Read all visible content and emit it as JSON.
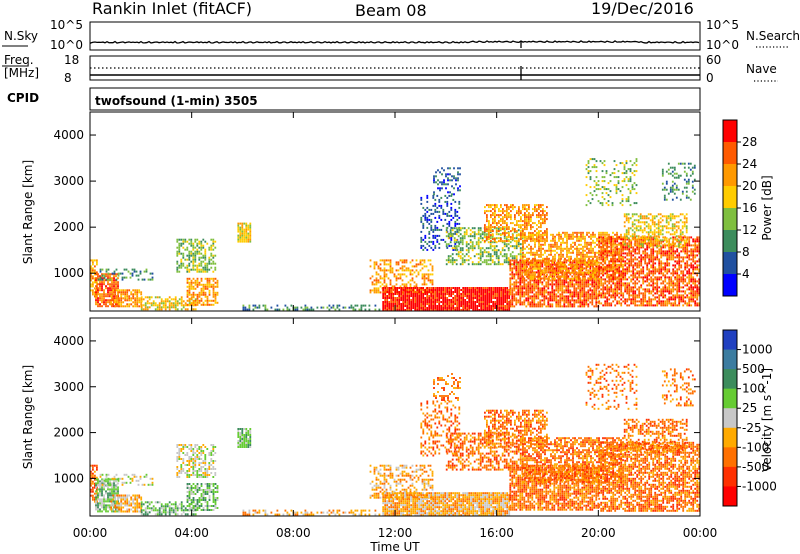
{
  "header": {
    "station": "Rankin Inlet (fitACF)",
    "beam": "Beam 08",
    "date": "19/Dec/2016"
  },
  "noise_panel": {
    "left_label": "N.Sky",
    "right_label": "N.Search",
    "left_ticks": [
      "10^5",
      "10^0"
    ],
    "right_ticks": [
      "10^5",
      "10^0"
    ]
  },
  "freq_panel": {
    "left_label_line1": "Freq.",
    "left_label_line2": "[MHz]",
    "right_label": "Nave",
    "left_ticks": [
      "18",
      "8"
    ],
    "right_ticks": [
      "60",
      "0"
    ]
  },
  "cpid": {
    "label": "CPID",
    "value": "twofsound (1-min) 3505"
  },
  "x_axis": {
    "label": "Time UT",
    "ticks": [
      "00:00",
      "04:00",
      "08:00",
      "12:00",
      "16:00",
      "20:00",
      "00:00"
    ]
  },
  "chart_data": [
    {
      "type": "heatmap",
      "name": "power",
      "ylabel": "Slant Range [km]",
      "colorbar_label": "Power [dB]",
      "colorbar_ticks": [
        "28",
        "24",
        "20",
        "16",
        "12",
        "8",
        "4"
      ],
      "colorbar_colors": [
        "#ff0000",
        "#ff5a00",
        "#ff9900",
        "#ffcc00",
        "#7fbf3f",
        "#3c8c5c",
        "#2050a0",
        "#0000ff"
      ],
      "xlim_hours": [
        0,
        24
      ],
      "ylim_km": [
        180,
        4500
      ],
      "yticks": [
        1000,
        2000,
        3000,
        4000
      ],
      "grid": false
    },
    {
      "type": "heatmap",
      "name": "velocity",
      "ylabel": "Slant Range [km]",
      "colorbar_label": "Velocity [m s^-1]",
      "colorbar_ticks": [
        "1000",
        "500",
        "100",
        "25",
        "-25",
        "-100",
        "-500",
        "-1000"
      ],
      "colorbar_colors": [
        "#2040c0",
        "#3c7ca0",
        "#3c8c5c",
        "#66cc33",
        "#c8c8c8",
        "#ffaa00",
        "#ff7000",
        "#ff3000",
        "#ff0000"
      ],
      "xlim_hours": [
        0,
        24
      ],
      "ylim_km": [
        180,
        4500
      ],
      "yticks": [
        1000,
        2000,
        3000,
        4000
      ],
      "grid": false
    }
  ]
}
